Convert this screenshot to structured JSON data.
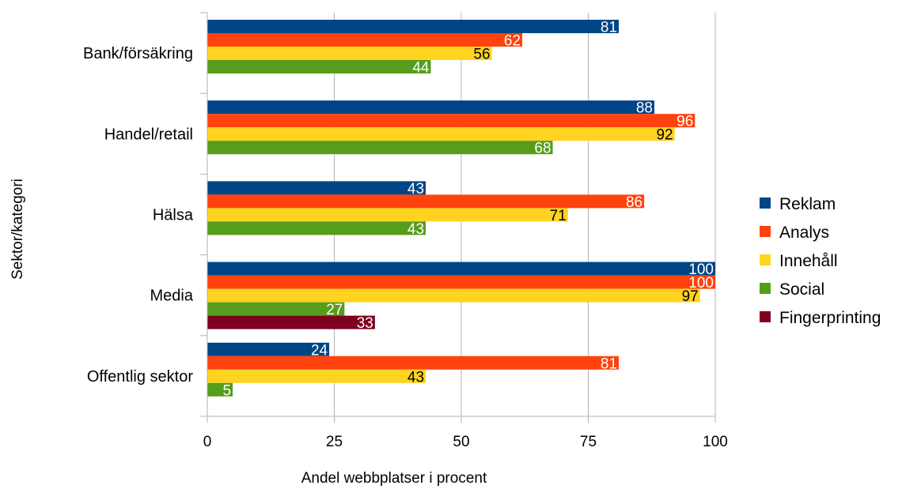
{
  "chart_data": {
    "type": "bar",
    "orientation": "horizontal",
    "categories": [
      "Bank/försäkring",
      "Handel/retail",
      "Hälsa",
      "Media",
      "Offentlig sektor"
    ],
    "series": [
      {
        "name": "Reklam",
        "color": "#004586",
        "label_color": "#ffffff",
        "values": [
          81,
          88,
          43,
          100,
          24
        ]
      },
      {
        "name": "Analys",
        "color": "#ff420e",
        "label_color": "#ffffff",
        "values": [
          62,
          96,
          86,
          100,
          81
        ]
      },
      {
        "name": "Innehåll",
        "color": "#ffd320",
        "label_color": "#000000",
        "values": [
          56,
          92,
          71,
          97,
          43
        ]
      },
      {
        "name": "Social",
        "color": "#579d1c",
        "label_color": "#ffffff",
        "values": [
          44,
          68,
          43,
          27,
          5
        ]
      },
      {
        "name": "Fingerprinting",
        "color": "#7e0021",
        "label_color": "#ffffff",
        "values": [
          null,
          null,
          null,
          33,
          null
        ]
      }
    ],
    "xlim": [
      0,
      100
    ],
    "xticks": [
      0,
      25,
      50,
      75,
      100
    ],
    "xlabel": "Andel webbplatser i procent",
    "ylabel": "Sektor/kategori",
    "grid": true,
    "legend": "right"
  }
}
